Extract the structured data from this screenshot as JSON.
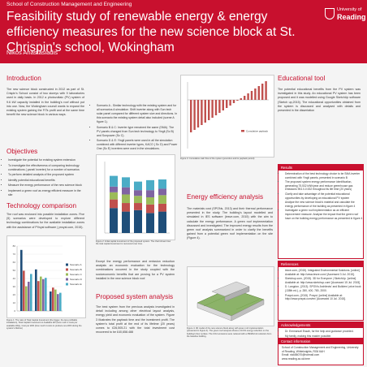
{
  "header": {
    "school": "School of Construction Management and Engineering",
    "title": "Feasibility study of renewable energy & energy efficiency measures for the new science block at St. Chrispin's school, Wokingham",
    "author": "Nikos Anastasiadis",
    "logo_top": "University of",
    "logo_bottom": "Reading"
  },
  "introduction": {
    "heading": "Introduction",
    "text": "The new science block constructed in 2012 as part of St. Crispin's School consist of two storeys with 9 laboratories used in daily basis. In 2012 a photovoltaic (PV) system of 9.6 kW capacity installed in the building's roof without put into use. Now, the Wokingham council wants to expand the existing system gaining the FITs profit and at the same time benefit the new science block in various ways."
  },
  "objectives": {
    "heading": "Objectives",
    "items": [
      "Investigate the potential for existing system extension",
      "To investigate the effectiveness of comparing technology combinations ( panel/ inverter) for a number of scenarios",
      "To perform detailed analysis of the proposed system",
      "Identify potential educational benefits",
      "Measure the energy performance of the new science block",
      "Implement a green roof as energy efficient measure in the site"
    ]
  },
  "tech": {
    "heading": "Technology comparison",
    "text": "The roof was enclosed into possible installation zones. Five (5) scenarios were developed to explore different technology combinations for the available installation zones with the assistance of PVsyst software ( pvsyst.com, 2015)."
  },
  "chart1": {
    "caption": "Figure 1: The ratio of Total Capital Investment (the bigger, the less profitable installation), Total Capital Investment to Available kW (how much it costs per available kWp), Cost per kWh (how much it costs to produce one kWh during the system's lifetime)",
    "legend": [
      "Scenario A",
      "Scenario B",
      "Scenario C",
      "Scenario D",
      "Scenario E"
    ],
    "colors": [
      "#1f4e79",
      "#c0504d",
      "#9bbb59",
      "#8064a2",
      "#4bacc6"
    ],
    "ticks": [
      "0",
      "10",
      "20",
      "30",
      "40",
      "50",
      "60",
      "70",
      "80"
    ]
  },
  "scenarios": {
    "items": [
      "Scenario A - Similar technology with the existing system and for all scenarios A simulation. Shift inverter along with Sun tech solar panel compared for different system size and directions. In this scenario the existing system detail also included (scene A figure 1).",
      "Scenario B & C: Inverter type remained the same (SMA). The PV panels changed from Sun tech technology to Yingli (Sc B) and Sunpower (Sc C).",
      "Scenario D & E: Yingli panels were used in all the simulation combined with different inverter types, KACO ( Sc D) and Power One (Sc E) inverters were used in the simulations."
    ]
  },
  "chart2": {
    "caption": "Figure 2: Initial capital investment of the proposed system. The chart shows how the total capital investment is recovered over time.",
    "caption2": "Figure 3: Table: Annual, Environmental and energy performance simulation of the system"
  },
  "excerpt": {
    "text": "Except the energy performance and emission reduction analysis an economic evaluation for the technology combinations occurred in the study coupled with the socioeconomic benefits that are proving for a PV system installed in the new science block roof."
  },
  "proposed": {
    "heading": "Proposed system analysis",
    "text": "The best system from the previous analysis investigated in detail including among other electrical layout analysis, energy yield and economic evaluation of the system. Figure 3 illustrates the payback time and the investment profit. The system's total profit at the end of its lifetime (20 years) comes to £26,505.21 with the total investment cost recovered to be £40,658.488"
  },
  "chart3": {
    "caption": "Figure 3: Cumulative cash flow of the system (pounds £ and its payback period)",
    "legend": "Cumulative payback"
  },
  "energy": {
    "heading": "Energy efficiency analysis",
    "text": "The materials cost (SPONs, 2013) and their thermal performance presented in the study. The building's layout modelled and simulated in IES software (iesve.com, 2015) with the aim to calculate the energy performance. A green roof implementation discussed and investigated. The improved energy results from the green roof analysis summarized in order to clarify the benefits gained from a potential green roof implementation on the site (Figure 4)."
  },
  "model": {
    "caption": "Figure 4: 3D model of the new science block along with green roof implementation (presented in Figure 4). The green roof analysis shows a 10.0% energy reduction on the building's floor surface. The CO2 emissions were reduced with a 35kWh/m2 reduction from the baseline building."
  },
  "educational": {
    "heading": "Educational tool",
    "text": "The potential educational benefits from the PV system was investigated in this study. An educational PV system has been proposed and it was modelled using Google SketchUp software (Sketch up,2015). The educational opportunities obtained from the system is discussed and analysed with details and presented in the dissertation"
  },
  "results": {
    "heading": "Results",
    "items": [
      "Determination of the best technology choice to be SMA inverter combined with Yingli panels, presented in scenario B",
      "The proposed system energy performance identification, generating 75,532 kWh/year and reduce greenhouse gas emissions 904.0-0.532 throughout its life time (20 years)",
      "Clarify and take advantage of the potential educational opportunities by developing an educational PV system",
      "Analyse the new science block's material and calculate the energy performance of the building as presented in figure 4",
      "Investigate a green roof implementation as an efficient improvement measure. Analyse the impact that the green roof have on the building energy performance as presented in figure 4"
    ]
  },
  "references": {
    "heading": "References",
    "items": [
      "iesve.com, (2015). Integrated Environmental Solutions. [online] Available at: http://www.iesve.com/ [Accessed 3 Jul. 2015].",
      "Sketchup.com, (2015). 3D for Everyone | SketchUp. [online] Available at: http://www.sketchup.com/ [Accessed 15 Jul. 2015].",
      "D. Langdon, (2013). SPON's Architects' and Builders' price book (138th ed.), p. 280, 400, 780, 2000.",
      "Pvsyst.com, (2015). Pvsyst. [online] Available at: http://www.pvsyst.com/en/ [Accessed 10 Jul. 2015]."
    ]
  },
  "acknowledgements": {
    "heading": "Acknowledgements",
    "items": [
      "Dr. Emmanuel Essah, for the help and guidance provided.",
      "My family, making this master possible."
    ]
  },
  "contact": {
    "heading": "Contact information",
    "lines": [
      "School of Construction Management and Engineering, University of Reading, Whiteknights, RG6 6AH",
      "Email: nick86070@hotmail.com",
      "www.reading.ac.uk/cme"
    ]
  }
}
